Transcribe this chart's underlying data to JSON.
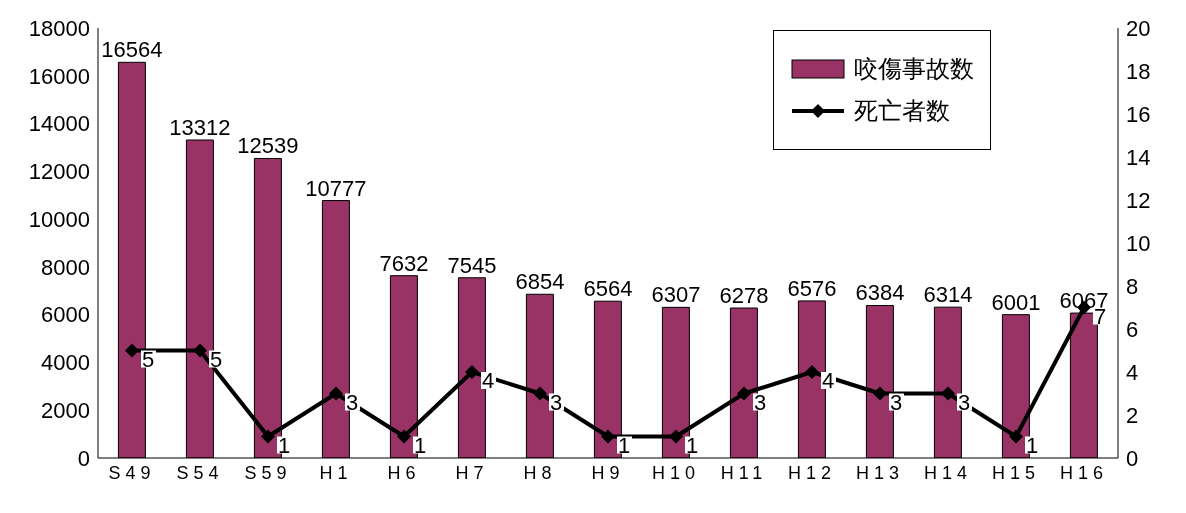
{
  "chart_data": {
    "type": "bar",
    "categories": [
      "S49",
      "S54",
      "S59",
      "H1",
      "H6",
      "H7",
      "H8",
      "H9",
      "H10",
      "H11",
      "H12",
      "H13",
      "H14",
      "H15",
      "H16"
    ],
    "series": [
      {
        "name": "咬傷事故数",
        "type": "bar",
        "color": "#993366",
        "values": [
          16564,
          13312,
          12539,
          10777,
          7632,
          7545,
          6854,
          6564,
          6307,
          6278,
          6576,
          6384,
          6314,
          6001,
          6067
        ]
      },
      {
        "name": "死亡者数",
        "type": "line",
        "axis": "y2",
        "color": "#000000",
        "values": [
          5,
          5,
          1,
          3,
          1,
          4,
          3,
          1,
          1,
          3,
          4,
          3,
          3,
          1,
          7
        ]
      }
    ],
    "ylim": [
      0,
      18000
    ],
    "yticks": [
      0,
      2000,
      4000,
      6000,
      8000,
      10000,
      12000,
      14000,
      16000,
      18000
    ],
    "y2lim": [
      0,
      20
    ],
    "y2ticks": [
      0,
      2,
      4,
      6,
      8,
      10,
      12,
      14,
      16,
      18,
      20
    ],
    "data_labels": true,
    "legend": "top right",
    "marker": "diamond",
    "line_style": "solid",
    "grid": false
  }
}
